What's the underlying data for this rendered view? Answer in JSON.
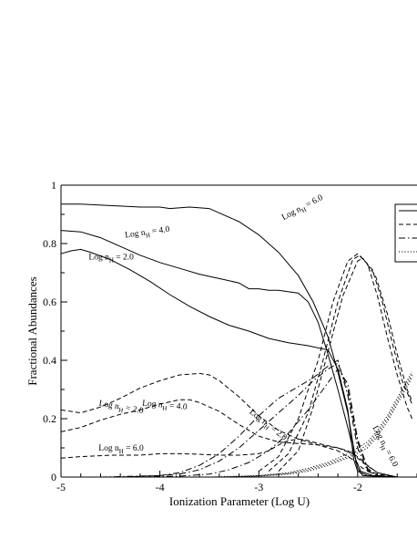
{
  "chart_data": {
    "type": "line",
    "title": "",
    "xlabel": "Ionization Parameter (Log U)",
    "ylabel": "Fractional Abundances",
    "xlim": [
      -5,
      -1.4
    ],
    "ylim": [
      0,
      1
    ],
    "x_ticks": [
      -5,
      -4,
      -3,
      -2
    ],
    "y_ticks": [
      0,
      0.2,
      0.4,
      0.6,
      0.8,
      1
    ],
    "x_tick_labels": [
      "-5",
      "-4",
      "-3",
      "-2"
    ],
    "y_tick_labels": [
      "0",
      "0.2",
      "0.4",
      "0.6",
      "0.8",
      "1"
    ],
    "grid": false,
    "legend_placement": "top-right (clipped at image edge)",
    "legend_styles": [
      "solid",
      "dashed",
      "dashdot",
      "dotted"
    ],
    "series": [
      {
        "style": "solid",
        "points": [
          [
            -5,
            0.935
          ],
          [
            -4.8,
            0.935
          ],
          [
            -4.5,
            0.93
          ],
          [
            -4.2,
            0.925
          ],
          [
            -4,
            0.925
          ],
          [
            -3.9,
            0.92
          ],
          [
            -3.7,
            0.925
          ],
          [
            -3.5,
            0.92
          ],
          [
            -3.4,
            0.905
          ],
          [
            -3.2,
            0.875
          ],
          [
            -3,
            0.83
          ],
          [
            -2.8,
            0.77
          ],
          [
            -2.6,
            0.69
          ],
          [
            -2.45,
            0.6
          ],
          [
            -2.3,
            0.48
          ],
          [
            -2.2,
            0.36
          ],
          [
            -2.1,
            0.22
          ],
          [
            -2.02,
            0.06
          ],
          [
            -1.97,
            0.02
          ],
          [
            -1.85,
            0.005
          ],
          [
            -1.6,
            0.0
          ]
        ]
      },
      {
        "style": "solid",
        "points": [
          [
            -5,
            0.845
          ],
          [
            -4.8,
            0.84
          ],
          [
            -4.6,
            0.82
          ],
          [
            -4.4,
            0.79
          ],
          [
            -4.2,
            0.76
          ],
          [
            -4,
            0.735
          ],
          [
            -3.8,
            0.715
          ],
          [
            -3.6,
            0.695
          ],
          [
            -3.4,
            0.68
          ],
          [
            -3.2,
            0.665
          ],
          [
            -3.1,
            0.645
          ],
          [
            -3,
            0.645
          ],
          [
            -2.9,
            0.64
          ],
          [
            -2.8,
            0.64
          ],
          [
            -2.6,
            0.63
          ],
          [
            -2.5,
            0.6
          ],
          [
            -2.4,
            0.53
          ],
          [
            -2.3,
            0.42
          ],
          [
            -2.2,
            0.3
          ],
          [
            -2.1,
            0.17
          ],
          [
            -2,
            0.03
          ],
          [
            -1.95,
            0.005
          ],
          [
            -1.6,
            0.0
          ]
        ]
      },
      {
        "style": "solid",
        "points": [
          [
            -5,
            0.765
          ],
          [
            -4.9,
            0.775
          ],
          [
            -4.8,
            0.78
          ],
          [
            -4.7,
            0.77
          ],
          [
            -4.5,
            0.745
          ],
          [
            -4.3,
            0.71
          ],
          [
            -4.1,
            0.67
          ],
          [
            -3.9,
            0.625
          ],
          [
            -3.7,
            0.585
          ],
          [
            -3.5,
            0.55
          ],
          [
            -3.3,
            0.52
          ],
          [
            -3.1,
            0.5
          ],
          [
            -2.9,
            0.475
          ],
          [
            -2.7,
            0.46
          ],
          [
            -2.5,
            0.45
          ],
          [
            -2.3,
            0.435
          ],
          [
            -2.2,
            0.37
          ],
          [
            -2.1,
            0.23
          ],
          [
            -2.04,
            0.06
          ],
          [
            -2.0,
            0.02
          ],
          [
            -1.9,
            0.005
          ],
          [
            -1.6,
            0.0
          ]
        ]
      },
      {
        "style": "dashed",
        "points": [
          [
            -5,
            0.23
          ],
          [
            -4.8,
            0.22
          ],
          [
            -4.6,
            0.24
          ],
          [
            -4.4,
            0.27
          ],
          [
            -4.2,
            0.305
          ],
          [
            -4,
            0.33
          ],
          [
            -3.8,
            0.35
          ],
          [
            -3.6,
            0.355
          ],
          [
            -3.5,
            0.35
          ],
          [
            -3.4,
            0.33
          ],
          [
            -3.2,
            0.275
          ],
          [
            -3,
            0.21
          ],
          [
            -2.8,
            0.16
          ],
          [
            -2.6,
            0.13
          ],
          [
            -2.4,
            0.11
          ],
          [
            -2.2,
            0.09
          ],
          [
            -2.05,
            0.06
          ],
          [
            -1.95,
            0.03
          ],
          [
            -1.8,
            0.01
          ],
          [
            -1.6,
            0.0
          ]
        ]
      },
      {
        "style": "dashed",
        "points": [
          [
            -5,
            0.155
          ],
          [
            -4.8,
            0.17
          ],
          [
            -4.6,
            0.195
          ],
          [
            -4.4,
            0.215
          ],
          [
            -4.2,
            0.23
          ],
          [
            -4,
            0.25
          ],
          [
            -3.8,
            0.265
          ],
          [
            -3.7,
            0.265
          ],
          [
            -3.6,
            0.255
          ],
          [
            -3.4,
            0.225
          ],
          [
            -3.2,
            0.18
          ],
          [
            -3,
            0.14
          ],
          [
            -2.8,
            0.12
          ],
          [
            -2.6,
            0.115
          ],
          [
            -2.4,
            0.11
          ],
          [
            -2.2,
            0.1
          ],
          [
            -2.05,
            0.08
          ],
          [
            -1.95,
            0.05
          ],
          [
            -1.8,
            0.015
          ],
          [
            -1.6,
            0.0
          ]
        ]
      },
      {
        "style": "dashed",
        "points": [
          [
            -5,
            0.065
          ],
          [
            -4.8,
            0.07
          ],
          [
            -4.5,
            0.075
          ],
          [
            -4.2,
            0.075
          ],
          [
            -4,
            0.08
          ],
          [
            -3.8,
            0.08
          ],
          [
            -3.6,
            0.078
          ],
          [
            -3.4,
            0.075
          ],
          [
            -3.2,
            0.075
          ],
          [
            -3,
            0.08
          ],
          [
            -2.9,
            0.09
          ],
          [
            -2.8,
            0.11
          ],
          [
            -2.7,
            0.125
          ],
          [
            -2.6,
            0.13
          ],
          [
            -2.5,
            0.125
          ],
          [
            -2.4,
            0.115
          ],
          [
            -2.2,
            0.1
          ],
          [
            -2.1,
            0.09
          ],
          [
            -2.0,
            0.07
          ],
          [
            -1.9,
            0.04
          ],
          [
            -1.8,
            0.015
          ],
          [
            -1.6,
            0.0
          ]
        ]
      },
      {
        "style": "dashed",
        "points": [
          [
            -3.0,
            0.02
          ],
          [
            -2.8,
            0.07
          ],
          [
            -2.6,
            0.2
          ],
          [
            -2.4,
            0.4
          ],
          [
            -2.25,
            0.6
          ],
          [
            -2.1,
            0.74
          ],
          [
            -2.0,
            0.765
          ],
          [
            -1.9,
            0.73
          ],
          [
            -1.8,
            0.62
          ],
          [
            -1.7,
            0.48
          ],
          [
            -1.6,
            0.35
          ],
          [
            -1.5,
            0.24
          ],
          [
            -1.45,
            0.2
          ]
        ]
      },
      {
        "style": "dashed",
        "points": [
          [
            -2.9,
            0.02
          ],
          [
            -2.7,
            0.08
          ],
          [
            -2.5,
            0.22
          ],
          [
            -2.35,
            0.4
          ],
          [
            -2.2,
            0.6
          ],
          [
            -2.05,
            0.745
          ],
          [
            -1.98,
            0.76
          ],
          [
            -1.85,
            0.71
          ],
          [
            -1.75,
            0.6
          ],
          [
            -1.65,
            0.46
          ],
          [
            -1.55,
            0.33
          ],
          [
            -1.45,
            0.25
          ]
        ]
      },
      {
        "style": "dashed",
        "points": [
          [
            -2.8,
            0.02
          ],
          [
            -2.6,
            0.09
          ],
          [
            -2.45,
            0.24
          ],
          [
            -2.3,
            0.43
          ],
          [
            -2.15,
            0.62
          ],
          [
            -2.0,
            0.74
          ],
          [
            -1.95,
            0.75
          ],
          [
            -1.82,
            0.69
          ],
          [
            -1.7,
            0.56
          ],
          [
            -1.6,
            0.42
          ],
          [
            -1.5,
            0.3
          ],
          [
            -1.45,
            0.26
          ]
        ]
      },
      {
        "style": "dashdot",
        "points": [
          [
            -4.8,
            0.0
          ],
          [
            -4.4,
            0.0
          ],
          [
            -4.0,
            0.005
          ],
          [
            -3.8,
            0.015
          ],
          [
            -3.6,
            0.04
          ],
          [
            -3.4,
            0.08
          ],
          [
            -3.2,
            0.14
          ],
          [
            -3.0,
            0.21
          ],
          [
            -2.8,
            0.27
          ],
          [
            -2.6,
            0.31
          ],
          [
            -2.45,
            0.34
          ],
          [
            -2.3,
            0.38
          ],
          [
            -2.2,
            0.4
          ],
          [
            -2.1,
            0.28
          ],
          [
            -2.0,
            0.1
          ],
          [
            -1.9,
            0.02
          ],
          [
            -1.8,
            0.005
          ],
          [
            -1.6,
            0.0
          ]
        ]
      },
      {
        "style": "dashdot",
        "points": [
          [
            -4.6,
            0.0
          ],
          [
            -4.0,
            0.005
          ],
          [
            -3.8,
            0.01
          ],
          [
            -3.6,
            0.025
          ],
          [
            -3.4,
            0.055
          ],
          [
            -3.2,
            0.1
          ],
          [
            -3.0,
            0.16
          ],
          [
            -2.8,
            0.22
          ],
          [
            -2.6,
            0.28
          ],
          [
            -2.45,
            0.33
          ],
          [
            -2.3,
            0.37
          ],
          [
            -2.2,
            0.39
          ],
          [
            -2.1,
            0.3
          ],
          [
            -2.0,
            0.12
          ],
          [
            -1.9,
            0.025
          ],
          [
            -1.8,
            0.005
          ],
          [
            -1.6,
            0.0
          ]
        ]
      },
      {
        "style": "dashdot",
        "points": [
          [
            -4.2,
            0.0
          ],
          [
            -3.8,
            0.003
          ],
          [
            -3.5,
            0.01
          ],
          [
            -3.3,
            0.025
          ],
          [
            -3.1,
            0.05
          ],
          [
            -2.9,
            0.09
          ],
          [
            -2.7,
            0.15
          ],
          [
            -2.5,
            0.23
          ],
          [
            -2.35,
            0.3
          ],
          [
            -2.2,
            0.37
          ],
          [
            -2.1,
            0.32
          ],
          [
            -2.0,
            0.13
          ],
          [
            -1.9,
            0.03
          ],
          [
            -1.8,
            0.005
          ],
          [
            -1.6,
            0.0
          ]
        ]
      },
      {
        "style": "dotted",
        "points": [
          [
            -3.5,
            0.0
          ],
          [
            -3.0,
            0.005
          ],
          [
            -2.7,
            0.015
          ],
          [
            -2.5,
            0.03
          ],
          [
            -2.3,
            0.05
          ],
          [
            -2.1,
            0.08
          ],
          [
            -1.9,
            0.12
          ],
          [
            -1.8,
            0.16
          ],
          [
            -1.7,
            0.21
          ],
          [
            -1.6,
            0.27
          ],
          [
            -1.5,
            0.33
          ],
          [
            -1.45,
            0.36
          ]
        ]
      },
      {
        "style": "dotted",
        "points": [
          [
            -3.4,
            0.0
          ],
          [
            -3.0,
            0.004
          ],
          [
            -2.7,
            0.012
          ],
          [
            -2.5,
            0.025
          ],
          [
            -2.3,
            0.045
          ],
          [
            -2.1,
            0.07
          ],
          [
            -1.9,
            0.11
          ],
          [
            -1.8,
            0.15
          ],
          [
            -1.7,
            0.2
          ],
          [
            -1.6,
            0.26
          ],
          [
            -1.5,
            0.32
          ],
          [
            -1.45,
            0.35
          ]
        ]
      },
      {
        "style": "dotted",
        "points": [
          [
            -3.3,
            0.0
          ],
          [
            -3.0,
            0.003
          ],
          [
            -2.7,
            0.01
          ],
          [
            -2.5,
            0.02
          ],
          [
            -2.3,
            0.04
          ],
          [
            -2.1,
            0.065
          ],
          [
            -1.9,
            0.1
          ],
          [
            -1.8,
            0.14
          ],
          [
            -1.7,
            0.19
          ],
          [
            -1.6,
            0.25
          ],
          [
            -1.5,
            0.31
          ],
          [
            -1.45,
            0.34
          ]
        ]
      }
    ],
    "annotations": [
      {
        "text": "Log n",
        "sub": "H",
        "suffix": " = 6.0",
        "x": -2.75,
        "y": 0.88,
        "rotate": 28
      },
      {
        "text": "Log n",
        "sub": "H",
        "suffix": " = 4.0",
        "x": -4.35,
        "y": 0.82,
        "rotate": 8
      },
      {
        "text": "Log n",
        "sub": "H",
        "suffix": " = 2.0",
        "x": -4.72,
        "y": 0.745,
        "rotate": 0
      },
      {
        "text": "Log n",
        "sub": "H",
        "suffix": " = 2.0",
        "x": -4.62,
        "y": 0.245,
        "rotate": -10
      },
      {
        "text": "Log n",
        "sub": "H",
        "suffix": " = 4.0",
        "x": -4.18,
        "y": 0.245,
        "rotate": -5
      },
      {
        "text": "Log n",
        "sub": "H",
        "suffix": " = 2.0",
        "x": -3.1,
        "y": 0.22,
        "rotate": -38
      },
      {
        "text": "Log n",
        "sub": "H",
        "suffix": " = 6.0",
        "x": -4.62,
        "y": 0.09,
        "rotate": 0
      },
      {
        "text": "Log n",
        "sub": "H",
        "suffix": " = 6.0",
        "x": -1.85,
        "y": 0.17,
        "rotate": -62
      }
    ]
  }
}
